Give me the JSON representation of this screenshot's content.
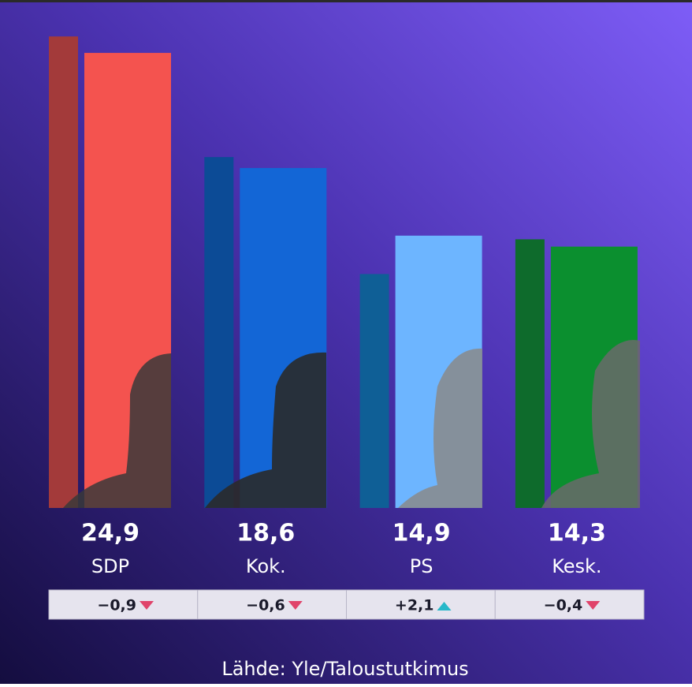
{
  "chart_data": {
    "type": "bar",
    "categories": [
      "SDP",
      "Kok.",
      "PS",
      "Kesk."
    ],
    "series": [
      {
        "colors": [
          "#a33a3a",
          "#0c4b96",
          "#0f5f96",
          "#0e6b2c"
        ],
        "values": [
          25.8,
          19.2,
          12.8,
          14.7
        ]
      },
      {
        "colors": [
          "#f4534f",
          "#1366d6",
          "#6db5ff",
          "#0b8f2f"
        ],
        "values": [
          24.9,
          18.6,
          14.9,
          14.3
        ],
        "value_labels": [
          "24,9",
          "18,6",
          "14,9",
          "14,3"
        ]
      }
    ],
    "changes": [
      -0.9,
      -0.6,
      2.1,
      -0.4
    ],
    "change_labels": [
      "−0,9",
      "−0,6",
      "+2,1",
      "−0,4"
    ],
    "change_colors": {
      "down": "#e0436a",
      "up": "#27b8c9"
    },
    "source": "Lähde: Yle/Taloustutkimus"
  }
}
